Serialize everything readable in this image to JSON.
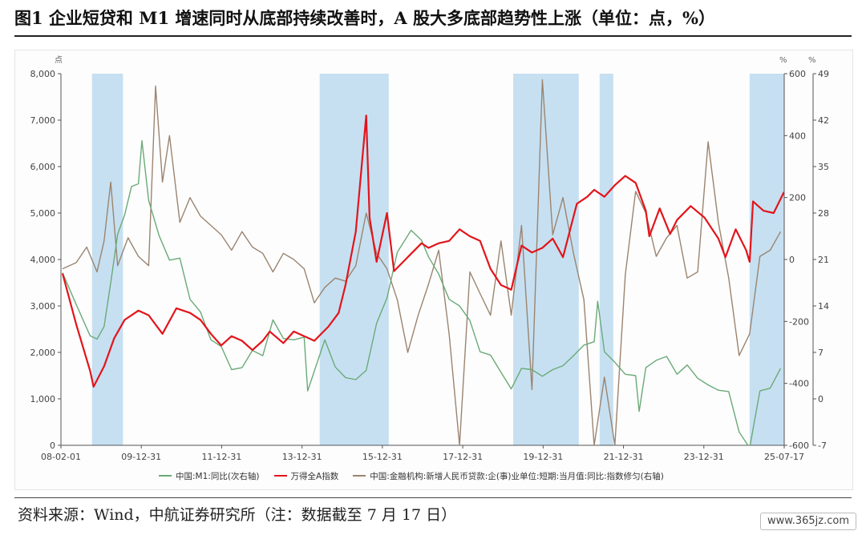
{
  "figure": {
    "title": "图1  企业短贷和 M1 增速同时从底部持续改善时，A 股大多底部趋势性上涨（单位：点，%）",
    "source": "资料来源：Wind，中航证券研究所（注：数据截至 7 月 17 日）",
    "watermark": "www.365jz.com"
  },
  "colors": {
    "m1": "#6aaa78",
    "index": "#e3141b",
    "loan": "#9b8470",
    "shade": "#c6e0f1",
    "axis": "#555555"
  },
  "chart_data": {
    "type": "line",
    "units": {
      "left": "点",
      "right_inner": "%",
      "right_outer": "%"
    },
    "x_tick_labels": [
      "08-02-01",
      "09-12-31",
      "11-12-31",
      "13-12-31",
      "15-12-31",
      "17-12-31",
      "19-12-31",
      "21-12-31",
      "23-12-31",
      "25-07-17"
    ],
    "x_range": [
      "2008-02-01",
      "2025-07-17"
    ],
    "axes": {
      "left": {
        "range": [
          0,
          8000
        ],
        "ticks": [
          "0",
          "1,000",
          "2,000",
          "3,000",
          "4,000",
          "5,000",
          "6,000",
          "7,000",
          "8,000"
        ]
      },
      "right_inner": {
        "range": [
          -600,
          600
        ],
        "ticks": [
          "-600",
          "-400",
          "-200",
          "0",
          "200",
          "400",
          "600"
        ]
      },
      "right_outer": {
        "range": [
          -7,
          49
        ],
        "ticks": [
          "-7",
          "0",
          "7",
          "14",
          "21",
          "28",
          "35",
          "42",
          "49"
        ]
      }
    },
    "shaded_periods": [
      [
        "2008-11-01",
        "2009-08-01"
      ],
      [
        "2014-05-01",
        "2015-12-31"
      ],
      [
        "2019-01-01",
        "2020-08-01"
      ],
      [
        "2021-02-01",
        "2021-06-01"
      ],
      [
        "2024-09-15",
        "2025-07-17"
      ]
    ],
    "series": [
      {
        "name": "中国:M1:同比(次右轴)",
        "axis": "right_outer",
        "points": [
          [
            "2008-02",
            19.0
          ],
          [
            "2008-06",
            14.2
          ],
          [
            "2008-10",
            9.5
          ],
          [
            "2008-12",
            9.0
          ],
          [
            "2009-02",
            10.9
          ],
          [
            "2009-04",
            17.5
          ],
          [
            "2009-06",
            24.8
          ],
          [
            "2009-08",
            27.7
          ],
          [
            "2009-10",
            32.0
          ],
          [
            "2009-12",
            32.4
          ],
          [
            "2010-01",
            38.9
          ],
          [
            "2010-03",
            29.9
          ],
          [
            "2010-06",
            24.6
          ],
          [
            "2010-09",
            20.9
          ],
          [
            "2010-12",
            21.2
          ],
          [
            "2011-03",
            15.0
          ],
          [
            "2011-06",
            13.1
          ],
          [
            "2011-09",
            8.9
          ],
          [
            "2011-12",
            7.9
          ],
          [
            "2012-03",
            4.4
          ],
          [
            "2012-06",
            4.7
          ],
          [
            "2012-09",
            7.3
          ],
          [
            "2012-12",
            6.5
          ],
          [
            "2013-03",
            11.9
          ],
          [
            "2013-06",
            9.1
          ],
          [
            "2013-09",
            8.9
          ],
          [
            "2013-12",
            9.3
          ],
          [
            "2014-01",
            1.2
          ],
          [
            "2014-06",
            8.9
          ],
          [
            "2014-09",
            4.8
          ],
          [
            "2014-12",
            3.2
          ],
          [
            "2015-03",
            2.9
          ],
          [
            "2015-06",
            4.3
          ],
          [
            "2015-09",
            11.4
          ],
          [
            "2015-12",
            15.2
          ],
          [
            "2016-03",
            22.1
          ],
          [
            "2016-07",
            25.4
          ],
          [
            "2016-10",
            23.9
          ],
          [
            "2016-12",
            21.4
          ],
          [
            "2017-03",
            18.8
          ],
          [
            "2017-06",
            15.0
          ],
          [
            "2017-09",
            14.0
          ],
          [
            "2017-12",
            11.8
          ],
          [
            "2018-03",
            7.1
          ],
          [
            "2018-06",
            6.6
          ],
          [
            "2018-09",
            4.0
          ],
          [
            "2018-12",
            1.5
          ],
          [
            "2019-03",
            4.6
          ],
          [
            "2019-06",
            4.4
          ],
          [
            "2019-09",
            3.4
          ],
          [
            "2019-12",
            4.4
          ],
          [
            "2020-03",
            5.0
          ],
          [
            "2020-06",
            6.5
          ],
          [
            "2020-09",
            8.1
          ],
          [
            "2020-12",
            8.6
          ],
          [
            "2021-01",
            14.7
          ],
          [
            "2021-03",
            7.1
          ],
          [
            "2021-06",
            5.5
          ],
          [
            "2021-09",
            3.7
          ],
          [
            "2021-12",
            3.5
          ],
          [
            "2022-01",
            -1.9
          ],
          [
            "2022-03",
            4.7
          ],
          [
            "2022-06",
            5.8
          ],
          [
            "2022-09",
            6.4
          ],
          [
            "2022-12",
            3.7
          ],
          [
            "2023-03",
            5.1
          ],
          [
            "2023-06",
            3.1
          ],
          [
            "2023-09",
            2.1
          ],
          [
            "2023-12",
            1.3
          ],
          [
            "2024-03",
            1.1
          ],
          [
            "2024-06",
            -5.0
          ],
          [
            "2024-09",
            -7.4
          ],
          [
            "2024-12",
            1.2
          ],
          [
            "2025-03",
            1.6
          ],
          [
            "2025-06",
            4.6
          ]
        ]
      },
      {
        "name": "万得全A指数",
        "axis": "left",
        "points": [
          [
            "2008-02",
            3700
          ],
          [
            "2008-06",
            2600
          ],
          [
            "2008-10",
            1600
          ],
          [
            "2008-11",
            1260
          ],
          [
            "2009-02",
            1700
          ],
          [
            "2009-05",
            2300
          ],
          [
            "2009-08",
            2700
          ],
          [
            "2009-12",
            2900
          ],
          [
            "2010-03",
            2800
          ],
          [
            "2010-07",
            2400
          ],
          [
            "2010-11",
            2950
          ],
          [
            "2011-03",
            2850
          ],
          [
            "2011-06",
            2700
          ],
          [
            "2011-09",
            2400
          ],
          [
            "2011-12",
            2150
          ],
          [
            "2012-03",
            2350
          ],
          [
            "2012-06",
            2250
          ],
          [
            "2012-09",
            2050
          ],
          [
            "2012-12",
            2250
          ],
          [
            "2013-02",
            2450
          ],
          [
            "2013-06",
            2200
          ],
          [
            "2013-09",
            2450
          ],
          [
            "2013-12",
            2350
          ],
          [
            "2014-03",
            2250
          ],
          [
            "2014-07",
            2550
          ],
          [
            "2014-10",
            2850
          ],
          [
            "2014-12",
            3450
          ],
          [
            "2015-03",
            4600
          ],
          [
            "2015-06",
            7100
          ],
          [
            "2015-07",
            4900
          ],
          [
            "2015-09",
            3950
          ],
          [
            "2015-12",
            5000
          ],
          [
            "2016-02",
            3750
          ],
          [
            "2016-06",
            4050
          ],
          [
            "2016-10",
            4350
          ],
          [
            "2016-12",
            4250
          ],
          [
            "2017-03",
            4350
          ],
          [
            "2017-06",
            4400
          ],
          [
            "2017-09",
            4650
          ],
          [
            "2017-12",
            4500
          ],
          [
            "2018-03",
            4400
          ],
          [
            "2018-06",
            3800
          ],
          [
            "2018-09",
            3450
          ],
          [
            "2018-12",
            3350
          ],
          [
            "2019-03",
            4300
          ],
          [
            "2019-06",
            4150
          ],
          [
            "2019-09",
            4250
          ],
          [
            "2019-12",
            4450
          ],
          [
            "2020-03",
            4050
          ],
          [
            "2020-07",
            5200
          ],
          [
            "2020-10",
            5350
          ],
          [
            "2020-12",
            5500
          ],
          [
            "2021-03",
            5350
          ],
          [
            "2021-06",
            5600
          ],
          [
            "2021-09",
            5800
          ],
          [
            "2021-12",
            5650
          ],
          [
            "2022-03",
            5050
          ],
          [
            "2022-04",
            4500
          ],
          [
            "2022-07",
            5100
          ],
          [
            "2022-10",
            4550
          ],
          [
            "2022-12",
            4850
          ],
          [
            "2023-04",
            5150
          ],
          [
            "2023-08",
            4900
          ],
          [
            "2023-12",
            4450
          ],
          [
            "2024-02",
            4050
          ],
          [
            "2024-05",
            4650
          ],
          [
            "2024-08",
            4200
          ],
          [
            "2024-09",
            3950
          ],
          [
            "2024-10",
            5250
          ],
          [
            "2025-01",
            5050
          ],
          [
            "2025-04",
            5000
          ],
          [
            "2025-07",
            5450
          ]
        ]
      },
      {
        "name": "中国:金融机构:新增人民币贷款:企(事)业单位:短期:当月值:同比:指数修匀(右轴)",
        "axis": "right_inner",
        "points": [
          [
            "2008-02",
            -30
          ],
          [
            "2008-06",
            -10
          ],
          [
            "2008-09",
            40
          ],
          [
            "2008-12",
            -40
          ],
          [
            "2009-02",
            60
          ],
          [
            "2009-04",
            250
          ],
          [
            "2009-06",
            -20
          ],
          [
            "2009-09",
            70
          ],
          [
            "2009-12",
            10
          ],
          [
            "2010-03",
            -20
          ],
          [
            "2010-05",
            560
          ],
          [
            "2010-07",
            250
          ],
          [
            "2010-09",
            400
          ],
          [
            "2010-12",
            120
          ],
          [
            "2011-03",
            200
          ],
          [
            "2011-06",
            140
          ],
          [
            "2011-09",
            110
          ],
          [
            "2011-12",
            80
          ],
          [
            "2012-03",
            30
          ],
          [
            "2012-06",
            90
          ],
          [
            "2012-09",
            40
          ],
          [
            "2012-12",
            20
          ],
          [
            "2013-03",
            -40
          ],
          [
            "2013-06",
            20
          ],
          [
            "2013-09",
            0
          ],
          [
            "2013-12",
            -30
          ],
          [
            "2014-03",
            -140
          ],
          [
            "2014-06",
            -90
          ],
          [
            "2014-09",
            -60
          ],
          [
            "2014-12",
            -70
          ],
          [
            "2015-03",
            -20
          ],
          [
            "2015-06",
            150
          ],
          [
            "2015-09",
            20
          ],
          [
            "2015-12",
            -30
          ],
          [
            "2016-03",
            -130
          ],
          [
            "2016-06",
            -300
          ],
          [
            "2016-09",
            -180
          ],
          [
            "2016-12",
            -80
          ],
          [
            "2017-03",
            30
          ],
          [
            "2017-06",
            -240
          ],
          [
            "2017-09",
            -600
          ],
          [
            "2017-12",
            -40
          ],
          [
            "2018-03",
            -110
          ],
          [
            "2018-06",
            -180
          ],
          [
            "2018-09",
            60
          ],
          [
            "2018-12",
            -180
          ],
          [
            "2019-03",
            110
          ],
          [
            "2019-06",
            -420
          ],
          [
            "2019-09",
            580
          ],
          [
            "2019-12",
            80
          ],
          [
            "2020-03",
            200
          ],
          [
            "2020-06",
            20
          ],
          [
            "2020-09",
            -130
          ],
          [
            "2020-12",
            -600
          ],
          [
            "2021-03",
            -380
          ],
          [
            "2021-06",
            -600
          ],
          [
            "2021-09",
            -50
          ],
          [
            "2021-12",
            220
          ],
          [
            "2022-03",
            150
          ],
          [
            "2022-06",
            10
          ],
          [
            "2022-09",
            70
          ],
          [
            "2022-12",
            110
          ],
          [
            "2023-03",
            -60
          ],
          [
            "2023-06",
            -40
          ],
          [
            "2023-09",
            380
          ],
          [
            "2023-12",
            120
          ],
          [
            "2024-03",
            -60
          ],
          [
            "2024-06",
            -310
          ],
          [
            "2024-09",
            -240
          ],
          [
            "2024-12",
            10
          ],
          [
            "2025-03",
            30
          ],
          [
            "2025-06",
            90
          ]
        ]
      }
    ]
  }
}
